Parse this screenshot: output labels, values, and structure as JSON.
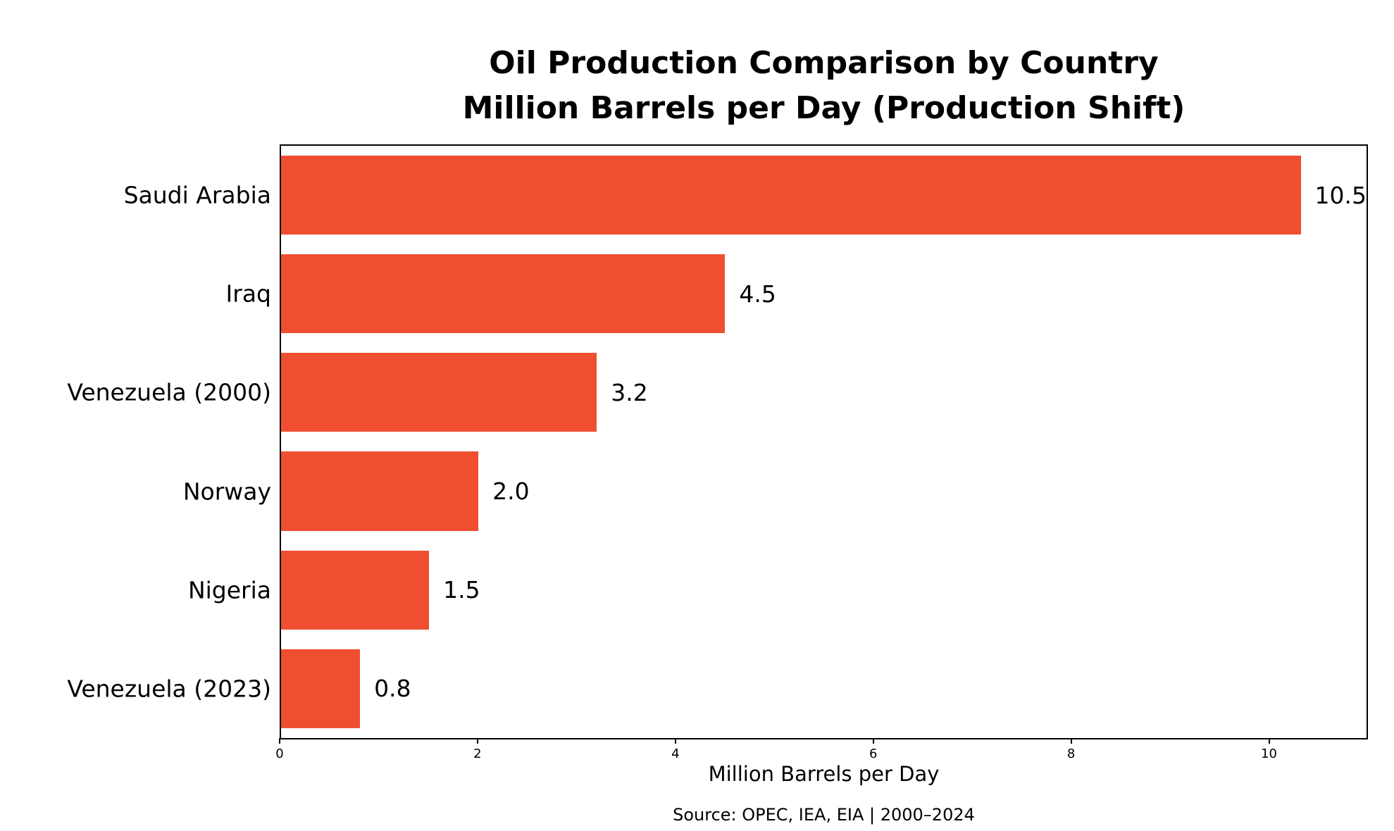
{
  "chart_data": {
    "type": "bar",
    "orientation": "horizontal",
    "title": "Oil Production Comparison by Country\nMillion Barrels per Day (Production Shift)",
    "categories": [
      "Saudi Arabia",
      "Iraq",
      "Venezuela (2000)",
      "Norway",
      "Nigeria",
      "Venezuela (2023)"
    ],
    "values": [
      10.5,
      4.5,
      3.2,
      2.0,
      1.5,
      0.8
    ],
    "value_labels": [
      "10.5",
      "4.5",
      "3.2",
      "2.0",
      "1.5",
      "0.8"
    ],
    "xlabel": "Million Barrels per Day",
    "ylabel": "",
    "xlim": [
      0,
      11
    ],
    "x_ticks": [
      0,
      2,
      4,
      6,
      8,
      10
    ],
    "x_tick_labels": [
      "0",
      "2",
      "4",
      "6",
      "8",
      "10"
    ],
    "bar_color": "#F04E30",
    "grid": false,
    "legend_position": "none",
    "source_note": "Source: OPEC, IEA, EIA | 2000–2024"
  }
}
